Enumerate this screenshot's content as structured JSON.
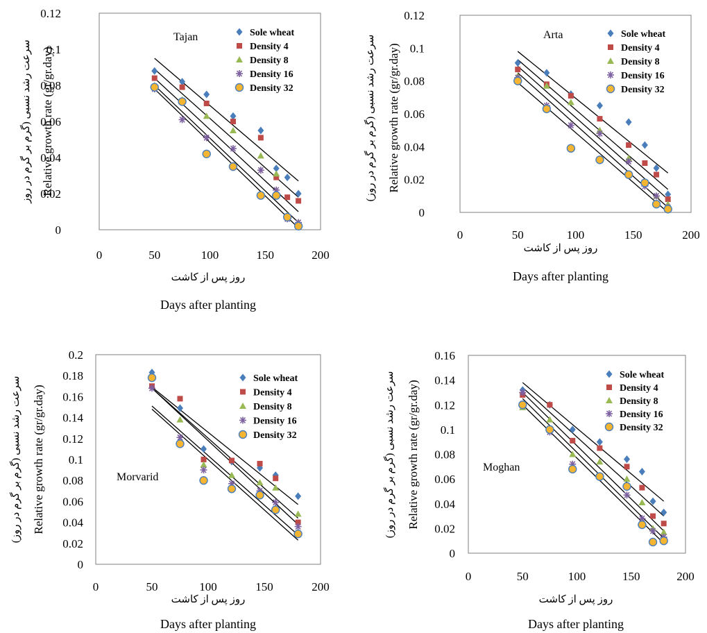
{
  "chart_data": [
    {
      "type": "scatter",
      "panel_name": "Tajan",
      "xlabel": "Days after planting",
      "xlabel_fa": "روز پس از کاشت",
      "ylabel": "Relative growth rate (gr/gr.day)",
      "ylabel_fa": "سرعت رشد نسبی (گرم بر گرم در روز",
      "xlim": [
        0,
        200
      ],
      "ylim": [
        0,
        0.12
      ],
      "xticks": [
        0,
        50,
        100,
        150,
        200
      ],
      "yticks": [
        "0",
        "0.02",
        "0.04",
        "0.06",
        "0.08",
        "0.1",
        "0.12"
      ],
      "legend_position": "top-right",
      "series": [
        {
          "name": "Sole wheat",
          "color": "#4a7ebb",
          "marker": "diamond",
          "x": [
            50,
            75,
            97,
            121,
            146,
            160,
            170,
            180
          ],
          "y": [
            0.088,
            0.082,
            0.075,
            0.063,
            0.055,
            0.034,
            0.029,
            0.02
          ],
          "trend": [
            [
              50,
              0.095
            ],
            [
              180,
              0.027
            ]
          ]
        },
        {
          "name": "Density 4",
          "color": "#be4b48",
          "marker": "square",
          "x": [
            50,
            75,
            97,
            121,
            146,
            160,
            170,
            180
          ],
          "y": [
            0.084,
            0.079,
            0.07,
            0.06,
            0.051,
            0.029,
            0.018,
            0.016
          ],
          "trend": [
            [
              50,
              0.089
            ],
            [
              180,
              0.018
            ]
          ]
        },
        {
          "name": "Density 8",
          "color": "#98b954",
          "marker": "triangle",
          "x": [
            50,
            75,
            97,
            121,
            146,
            160,
            170,
            180
          ],
          "y": [
            0.08,
            0.072,
            0.063,
            0.055,
            0.041,
            0.031,
            0.008,
            0.004
          ],
          "trend": [
            [
              50,
              0.084
            ],
            [
              180,
              0.01
            ]
          ]
        },
        {
          "name": "Density 16",
          "color": "#7d60a0",
          "marker": "asterisk",
          "x": [
            50,
            75,
            97,
            121,
            146,
            160,
            170,
            180
          ],
          "y": [
            0.078,
            0.061,
            0.051,
            0.045,
            0.033,
            0.022,
            0.006,
            0.004
          ],
          "trend": [
            [
              50,
              0.08
            ],
            [
              180,
              0.004
            ]
          ]
        },
        {
          "name": "Density 32",
          "color": "#f6b531",
          "marker": "circle",
          "x": [
            50,
            75,
            97,
            121,
            146,
            160,
            170,
            180
          ],
          "y": [
            0.079,
            0.071,
            0.042,
            0.035,
            0.019,
            0.019,
            0.007,
            0.002
          ],
          "trend": [
            [
              50,
              0.078
            ],
            [
              180,
              0.001
            ]
          ]
        }
      ]
    },
    {
      "type": "scatter",
      "panel_name": "Arta",
      "xlabel": "Days after planting",
      "xlabel_fa": "روز پس از کاشت",
      "ylabel": "Relative growth rate (gr/gr.day)",
      "ylabel_fa": "سرعت رشد نسبی (گرم بر گرم در روز)",
      "xlim": [
        0,
        200
      ],
      "ylim": [
        0,
        0.12
      ],
      "xticks": [
        0,
        50,
        100,
        150,
        200
      ],
      "yticks": [
        "0",
        "0.02",
        "0.04",
        "0.06",
        "0.08",
        "0.1",
        "0.12"
      ],
      "legend_position": "top-right",
      "series": [
        {
          "name": "Sole wheat",
          "color": "#4a7ebb",
          "marker": "diamond",
          "x": [
            50,
            75,
            96,
            121,
            146,
            160,
            170,
            180
          ],
          "y": [
            0.091,
            0.085,
            0.072,
            0.065,
            0.055,
            0.041,
            0.027,
            0.011
          ],
          "trend": [
            [
              50,
              0.098
            ],
            [
              180,
              0.024
            ]
          ]
        },
        {
          "name": "Density 4",
          "color": "#be4b48",
          "marker": "square",
          "x": [
            50,
            75,
            96,
            121,
            146,
            160,
            170,
            180
          ],
          "y": [
            0.087,
            0.078,
            0.071,
            0.057,
            0.041,
            0.03,
            0.023,
            0.008
          ],
          "trend": [
            [
              50,
              0.093
            ],
            [
              180,
              0.014
            ]
          ]
        },
        {
          "name": "Density 8",
          "color": "#98b954",
          "marker": "triangle",
          "x": [
            50,
            75,
            96,
            121,
            146,
            160,
            170,
            180
          ],
          "y": [
            0.083,
            0.077,
            0.067,
            0.05,
            0.033,
            0.018,
            0.01,
            0.005
          ],
          "trend": [
            [
              50,
              0.089
            ],
            [
              180,
              0.008
            ]
          ]
        },
        {
          "name": "Density 16",
          "color": "#7d60a0",
          "marker": "asterisk",
          "x": [
            50,
            75,
            96,
            121,
            146,
            160,
            170,
            180
          ],
          "y": [
            0.082,
            0.065,
            0.053,
            0.048,
            0.031,
            0.016,
            0.01,
            0.003
          ],
          "trend": [
            [
              50,
              0.085
            ],
            [
              180,
              0.003
            ]
          ]
        },
        {
          "name": "Density 32",
          "color": "#f6b531",
          "marker": "circle",
          "x": [
            50,
            75,
            96,
            121,
            146,
            160,
            170,
            180
          ],
          "y": [
            0.08,
            0.063,
            0.039,
            0.032,
            0.023,
            0.018,
            0.005,
            0.002
          ],
          "trend": [
            [
              50,
              0.079
            ],
            [
              180,
              0.0
            ]
          ]
        }
      ]
    },
    {
      "type": "scatter",
      "panel_name": "Morvarid",
      "xlabel": "Days after planting",
      "xlabel_fa": "روز پس از کاشت",
      "ylabel": "Relative growth rate (gr/gr.day)",
      "ylabel_fa": "سرعت رشد نسبی (گرم بر گرم در روز)",
      "xlim": [
        0,
        200
      ],
      "ylim": [
        0,
        0.2
      ],
      "xticks": [
        0,
        50,
        100,
        150,
        200
      ],
      "yticks": [
        "0",
        "0.02",
        "0.04",
        "0.06",
        "0.08",
        "0.1",
        "0.12",
        "0.14",
        "0.16",
        "0.18",
        "0.2"
      ],
      "legend_position": "top-right",
      "series": [
        {
          "name": "Sole wheat",
          "color": "#4a7ebb",
          "marker": "diamond",
          "x": [
            50,
            75,
            96,
            121,
            146,
            160,
            180
          ],
          "y": [
            0.183,
            0.149,
            0.11,
            0.098,
            0.092,
            0.085,
            0.065
          ],
          "trend": [
            [
              50,
              0.169
            ],
            [
              180,
              0.057
            ]
          ]
        },
        {
          "name": "Density 4",
          "color": "#be4b48",
          "marker": "square",
          "x": [
            50,
            75,
            96,
            121,
            146,
            160,
            180
          ],
          "y": [
            0.17,
            0.158,
            0.1,
            0.099,
            0.096,
            0.082,
            0.04
          ],
          "trend": [
            [
              50,
              0.168
            ],
            [
              180,
              0.044
            ]
          ]
        },
        {
          "name": "Density 8",
          "color": "#98b954",
          "marker": "triangle",
          "x": [
            50,
            75,
            96,
            121,
            146,
            160,
            180
          ],
          "y": [
            0.179,
            0.138,
            0.095,
            0.085,
            0.078,
            0.073,
            0.048
          ],
          "trend": [
            [
              50,
              0.168
            ],
            [
              180,
              0.038
            ]
          ]
        },
        {
          "name": "Density 16",
          "color": "#7d60a0",
          "marker": "asterisk",
          "x": [
            50,
            75,
            96,
            121,
            146,
            160,
            180
          ],
          "y": [
            0.168,
            0.121,
            0.09,
            0.077,
            0.07,
            0.059,
            0.036
          ],
          "trend": [
            [
              50,
              0.151
            ],
            [
              180,
              0.028
            ]
          ]
        },
        {
          "name": "Density 32",
          "color": "#f6b531",
          "marker": "circle",
          "x": [
            50,
            75,
            96,
            121,
            146,
            160,
            180
          ],
          "y": [
            0.178,
            0.115,
            0.08,
            0.072,
            0.066,
            0.052,
            0.029
          ],
          "trend": [
            [
              50,
              0.148
            ],
            [
              180,
              0.023
            ]
          ]
        }
      ]
    },
    {
      "type": "scatter",
      "panel_name": "Moghan",
      "xlabel": "Days after planting",
      "xlabel_fa": "روز پس از کاشت",
      "ylabel": "Relative growth rate (gr/gr.day)",
      "ylabel_fa": "سرعت رشد نسبی (گرم بر گرم در روز)",
      "xlim": [
        0,
        200
      ],
      "ylim": [
        0,
        0.16
      ],
      "xticks": [
        0,
        50,
        100,
        150,
        200
      ],
      "yticks": [
        "0",
        "0.02",
        "0.04",
        "0.06",
        "0.08",
        "0.1",
        "0.12",
        "0.14",
        "0.16"
      ],
      "legend_position": "top-right",
      "series": [
        {
          "name": "Sole wheat",
          "color": "#4a7ebb",
          "marker": "diamond",
          "x": [
            50,
            75,
            96,
            121,
            146,
            160,
            170,
            180
          ],
          "y": [
            0.132,
            0.12,
            0.1,
            0.09,
            0.076,
            0.066,
            0.042,
            0.033
          ],
          "trend": [
            [
              50,
              0.138
            ],
            [
              180,
              0.042
            ]
          ]
        },
        {
          "name": "Density 4",
          "color": "#be4b48",
          "marker": "square",
          "x": [
            50,
            75,
            96,
            121,
            146,
            160,
            170,
            180
          ],
          "y": [
            0.128,
            0.12,
            0.091,
            0.085,
            0.07,
            0.053,
            0.03,
            0.024
          ],
          "trend": [
            [
              50,
              0.134
            ],
            [
              180,
              0.03
            ]
          ]
        },
        {
          "name": "Density 8",
          "color": "#98b954",
          "marker": "triangle",
          "x": [
            50,
            75,
            96,
            121,
            146,
            160,
            170,
            180
          ],
          "y": [
            0.118,
            0.108,
            0.08,
            0.074,
            0.06,
            0.041,
            0.02,
            0.017
          ],
          "trend": [
            [
              50,
              0.13
            ],
            [
              180,
              0.018
            ]
          ]
        },
        {
          "name": "Density 16",
          "color": "#7d60a0",
          "marker": "asterisk",
          "x": [
            50,
            75,
            96,
            121,
            146,
            160,
            170,
            180
          ],
          "y": [
            0.13,
            0.098,
            0.072,
            0.062,
            0.047,
            0.028,
            0.018,
            0.013
          ],
          "trend": [
            [
              50,
              0.125
            ],
            [
              180,
              0.012
            ]
          ]
        },
        {
          "name": "Density 32",
          "color": "#f6b531",
          "marker": "circle",
          "x": [
            50,
            75,
            96,
            121,
            146,
            160,
            170,
            180
          ],
          "y": [
            0.12,
            0.1,
            0.068,
            0.062,
            0.054,
            0.023,
            0.009,
            0.01
          ],
          "trend": [
            [
              50,
              0.12
            ],
            [
              180,
              0.008
            ]
          ]
        }
      ]
    }
  ]
}
